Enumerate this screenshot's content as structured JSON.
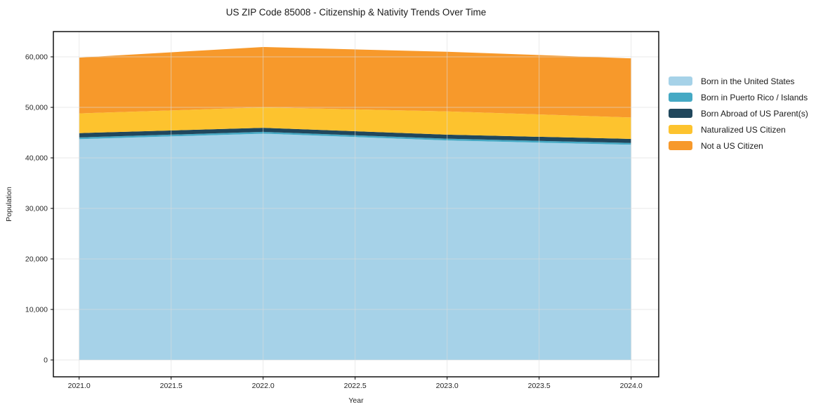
{
  "chart_data": {
    "type": "area",
    "stacked": true,
    "title": "US ZIP Code 85008 - Citizenship & Nativity Trends Over Time",
    "xlabel": "Year",
    "ylabel": "Population",
    "x": [
      2021,
      2022,
      2023,
      2024
    ],
    "series": [
      {
        "name": "Born in the United States",
        "color": "#a6d2e8",
        "values": [
          43700,
          44800,
          43450,
          42600
        ]
      },
      {
        "name": "Born in Puerto Rico / Islands",
        "color": "#45a9c4",
        "values": [
          350,
          350,
          350,
          350
        ]
      },
      {
        "name": "Born Abroad of US Parent(s)",
        "color": "#20475c",
        "values": [
          850,
          800,
          800,
          800
        ]
      },
      {
        "name": "Naturalized US Citizen",
        "color": "#fdc32e",
        "values": [
          3900,
          4050,
          4600,
          4250
        ]
      },
      {
        "name": "Not a US Citizen",
        "color": "#f7992b",
        "values": [
          11050,
          11950,
          11800,
          11700
        ]
      }
    ],
    "totals": [
      59850,
      61950,
      61000,
      59700
    ],
    "xticks": [
      2021.0,
      2021.5,
      2022.0,
      2022.5,
      2023.0,
      2023.5,
      2024.0
    ],
    "yticks": [
      0,
      10000,
      20000,
      30000,
      40000,
      50000,
      60000
    ],
    "xlim": [
      2020.86,
      2024.15
    ],
    "ylim": [
      -3333,
      65000
    ],
    "grid": true,
    "legend_position": "right",
    "colors": {
      "grid": "#dcdcdc",
      "spine": "#000000",
      "tick_label": "#262626"
    }
  }
}
